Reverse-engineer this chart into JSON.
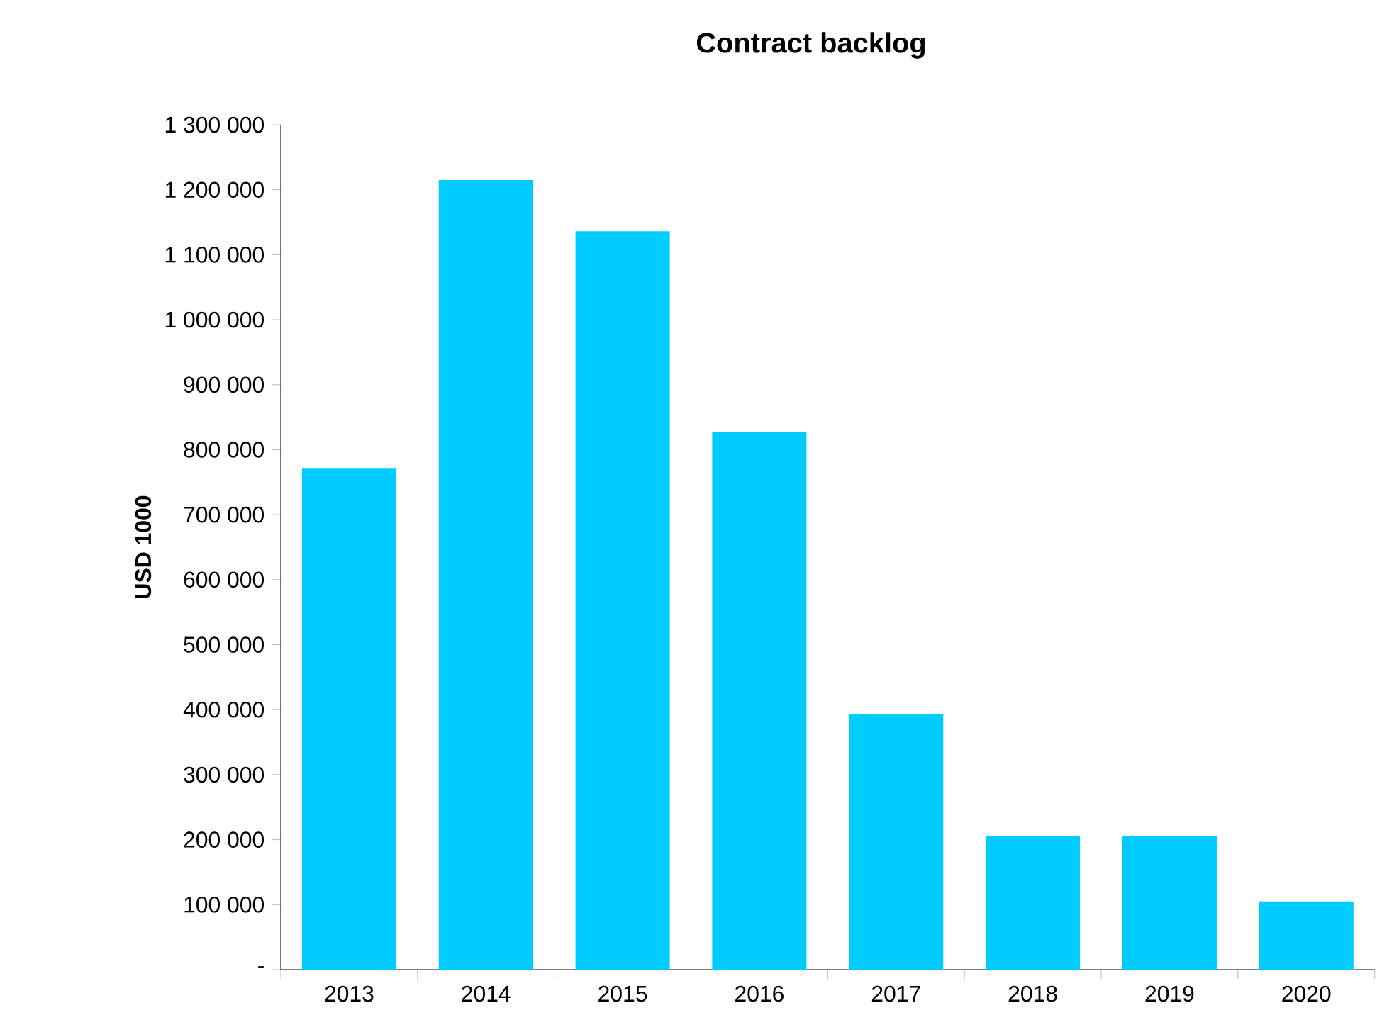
{
  "chart_data": {
    "type": "bar",
    "title": "Contract backlog",
    "ylabel": "USD 1000",
    "categories": [
      "2013",
      "2014",
      "2015",
      "2016",
      "2017",
      "2018",
      "2019",
      "2020"
    ],
    "values": [
      772000,
      1215000,
      1136000,
      827000,
      393000,
      205000,
      205000,
      105000
    ],
    "color": "#00ccff",
    "ylim": [
      0,
      1300000
    ],
    "yticks": [
      {
        "value": 0,
        "label": "-"
      },
      {
        "value": 100000,
        "label": "100 000"
      },
      {
        "value": 200000,
        "label": "200 000"
      },
      {
        "value": 300000,
        "label": "300 000"
      },
      {
        "value": 400000,
        "label": "400 000"
      },
      {
        "value": 500000,
        "label": "500 000"
      },
      {
        "value": 600000,
        "label": "600 000"
      },
      {
        "value": 700000,
        "label": "700 000"
      },
      {
        "value": 800000,
        "label": "800 000"
      },
      {
        "value": 900000,
        "label": "900 000"
      },
      {
        "value": 1000000,
        "label": "1 000 000"
      },
      {
        "value": 1100000,
        "label": "1 100 000"
      },
      {
        "value": 1200000,
        "label": "1 200 000"
      },
      {
        "value": 1300000,
        "label": "1 300 000"
      }
    ]
  }
}
